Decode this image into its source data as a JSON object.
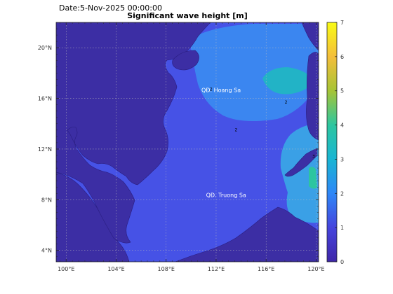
{
  "header": {
    "date_text": "Date:5-Nov-2025 00:00:00"
  },
  "chart_data": {
    "type": "heatmap",
    "title": "Significant wave height [m]",
    "xlabel": "",
    "ylabel": "",
    "xlim": [
      99.2,
      120.2
    ],
    "ylim": [
      3.1,
      22.0
    ],
    "x_ticks": [
      {
        "value": 100,
        "label": "100°E"
      },
      {
        "value": 104,
        "label": "104°E"
      },
      {
        "value": 108,
        "label": "108°E"
      },
      {
        "value": 112,
        "label": "112°E"
      },
      {
        "value": 116,
        "label": "116°E"
      },
      {
        "value": 120,
        "label": "120°E"
      }
    ],
    "y_ticks": [
      {
        "value": 4,
        "label": "4°N"
      },
      {
        "value": 8,
        "label": "8°N"
      },
      {
        "value": 12,
        "label": "12°N"
      },
      {
        "value": 16,
        "label": "16°N"
      },
      {
        "value": 20,
        "label": "20°N"
      }
    ],
    "grid": true,
    "colorbar": {
      "min": 0,
      "max": 7,
      "ticks": [
        0,
        1,
        2,
        3,
        4,
        5,
        6,
        7
      ],
      "colormap": "parula",
      "position": "right"
    },
    "place_labels": [
      {
        "text": "QĐ. Hoang Sa",
        "lon": 112.4,
        "lat": 16.5
      },
      {
        "text": "QĐ. Truong Sa",
        "lon": 112.8,
        "lat": 8.2
      }
    ],
    "contour_labels": [
      {
        "text": "2",
        "lon": 111.6,
        "lat": 16.6
      },
      {
        "text": "2",
        "lon": 113.6,
        "lat": 13.4
      },
      {
        "text": "2",
        "lon": 117.6,
        "lat": 15.6
      },
      {
        "text": "3",
        "lon": 119.8,
        "lat": 11.3
      }
    ],
    "wave_regions": [
      {
        "name": "background sea",
        "value": 1.3
      },
      {
        "name": "northern band",
        "value": 1.9
      },
      {
        "name": "luzon strait patch",
        "value": 2.7
      },
      {
        "name": "eastern sulu region",
        "value": 2.2
      },
      {
        "name": "philippine interior",
        "value": 3.2
      },
      {
        "name": "gulf of thailand",
        "value": 0.5
      }
    ],
    "land_value": 0.15
  }
}
